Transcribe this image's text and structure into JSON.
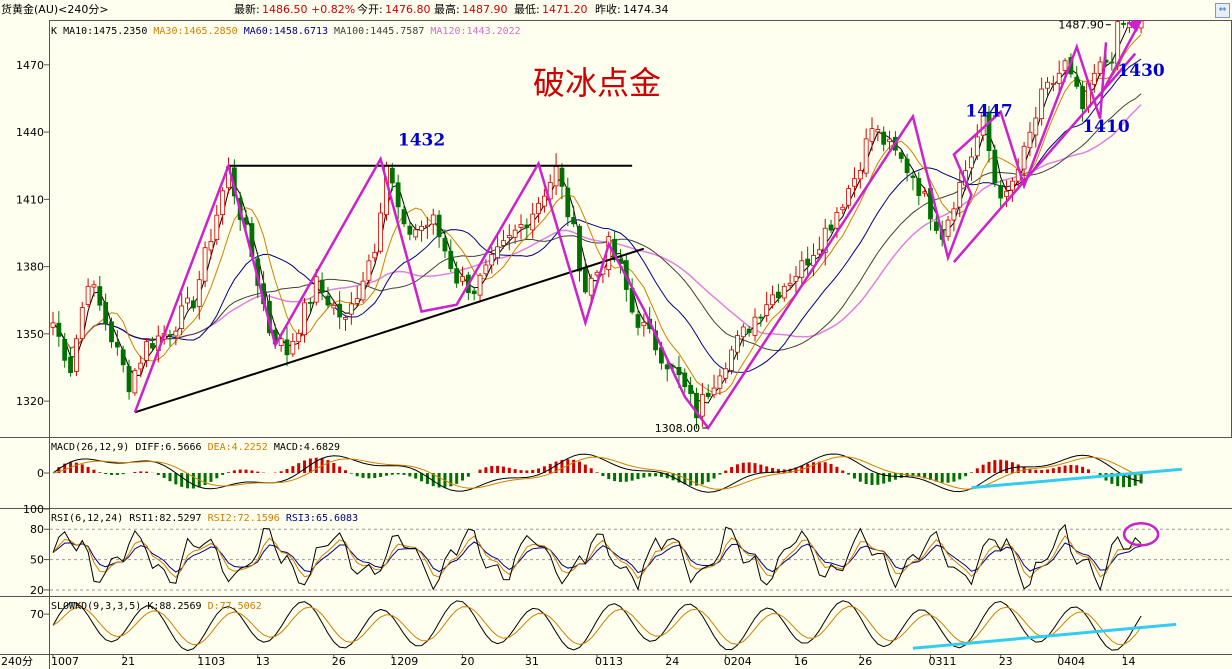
{
  "header": {
    "symbol": "货黄金(AU)<240分>",
    "latest_label": "最新:",
    "latest_value": "1486.50",
    "change_pct": "+0.82%",
    "open_label": "今开:",
    "open_value": "1476.80",
    "high_label": "最高:",
    "high_value": "1487.90",
    "low_label": "最低:",
    "low_value": "1471.20",
    "prev_close_label": "昨收:",
    "prev_close_value": "1474.34"
  },
  "colors": {
    "background": "#fffff0",
    "up_candle": "#d00000",
    "down_candle": "#007000",
    "ma10": "#000000",
    "ma30": "#d08000",
    "ma60": "#000080",
    "ma100": "#404040",
    "ma120": "#e080e0",
    "annotation_magenta": "#cc22cc",
    "annotation_blue": "#0000cc",
    "annotation_red": "#cc0000",
    "trendline_cyan": "#33ccee"
  },
  "chart_data": {
    "type": "candlestick",
    "timeframe": "240分",
    "title": "破冰点金",
    "ma_legend": {
      "prefix": "K",
      "items": [
        {
          "name": "MA10",
          "text": "MA10:1475.2350",
          "value": 1475.235
        },
        {
          "name": "MA30",
          "text": "MA30:1465.2850",
          "value": 1465.285
        },
        {
          "name": "MA60",
          "text": "MA60:1458.6713",
          "value": 1458.6713
        },
        {
          "name": "MA100",
          "text": "MA100:1445.7587",
          "value": 1445.7587
        },
        {
          "name": "MA120",
          "text": "MA120:1443.2022",
          "value": 1443.2022
        }
      ]
    },
    "price_axis": {
      "ylim": [
        1304,
        1490
      ],
      "ticks": [
        "1470",
        "1440",
        "1410",
        "1380",
        "1350",
        "1320"
      ]
    },
    "x_axis": {
      "corner_label": "240分",
      "ticks": [
        "1007",
        "21",
        "1103",
        "13",
        "26",
        "1209",
        "20",
        "31",
        "0113",
        "24",
        "0204",
        "16",
        "26",
        "0311",
        "23",
        "0404",
        "14"
      ],
      "tick_slots": [
        0,
        12,
        25,
        35,
        48,
        58,
        70,
        81,
        93,
        105,
        115,
        127,
        138,
        150,
        162,
        172,
        183
      ]
    },
    "price_path": [
      [
        0,
        1355
      ],
      [
        3,
        1335
      ],
      [
        6,
        1375
      ],
      [
        8,
        1362
      ],
      [
        13,
        1328
      ],
      [
        16,
        1345
      ],
      [
        20,
        1352
      ],
      [
        24,
        1365
      ],
      [
        30,
        1423
      ],
      [
        34,
        1385
      ],
      [
        37,
        1352
      ],
      [
        40,
        1342
      ],
      [
        43,
        1360
      ],
      [
        45,
        1372
      ],
      [
        50,
        1355
      ],
      [
        55,
        1390
      ],
      [
        57,
        1426
      ],
      [
        60,
        1395
      ],
      [
        65,
        1400
      ],
      [
        69,
        1375
      ],
      [
        72,
        1370
      ],
      [
        76,
        1385
      ],
      [
        82,
        1405
      ],
      [
        86,
        1423
      ],
      [
        89,
        1395
      ],
      [
        91,
        1370
      ],
      [
        93,
        1378
      ],
      [
        95,
        1389
      ],
      [
        97,
        1378
      ],
      [
        99,
        1360
      ],
      [
        103,
        1345
      ],
      [
        107,
        1330
      ],
      [
        110,
        1315
      ],
      [
        114,
        1335
      ],
      [
        118,
        1350
      ],
      [
        122,
        1365
      ],
      [
        128,
        1380
      ],
      [
        133,
        1400
      ],
      [
        137,
        1420
      ],
      [
        140,
        1442
      ],
      [
        144,
        1430
      ],
      [
        147,
        1421
      ],
      [
        149,
        1410
      ],
      [
        152,
        1395
      ],
      [
        154,
        1410
      ],
      [
        157,
        1430
      ],
      [
        159,
        1445
      ],
      [
        161,
        1418
      ],
      [
        163,
        1410
      ],
      [
        166,
        1430
      ],
      [
        169,
        1455
      ],
      [
        173,
        1470
      ],
      [
        176,
        1450
      ],
      [
        178,
        1465
      ],
      [
        181,
        1475
      ],
      [
        182,
        1485
      ],
      [
        183,
        1487.5
      ]
    ],
    "key_levels": [
      {
        "label": "1487.90",
        "price": 1487.9,
        "slot": 181
      },
      {
        "label": "1308.00",
        "price": 1308.0,
        "slot": 112
      }
    ],
    "annotations": [
      {
        "text": "1432",
        "price": 1434,
        "slot": 63
      },
      {
        "text": "1447",
        "price": 1447,
        "slot": 160
      },
      {
        "text": "1430",
        "price": 1465,
        "slot": 186
      },
      {
        "text": "1410",
        "price": 1440,
        "slot": 180
      }
    ],
    "resistance_line": {
      "price": 1425,
      "from_slot": 30,
      "to_slot": 99
    },
    "support_line": {
      "from": [
        14,
        1315
      ],
      "to": [
        101,
        1388
      ]
    },
    "zigzag": [
      [
        14,
        1315
      ],
      [
        30,
        1425
      ],
      [
        38,
        1345
      ],
      [
        56,
        1428
      ],
      [
        63,
        1360
      ],
      [
        69,
        1363
      ],
      [
        83,
        1426
      ],
      [
        91,
        1355
      ],
      [
        95,
        1390
      ],
      [
        101,
        1361
      ],
      [
        108,
        1322
      ],
      [
        112,
        1308
      ],
      [
        147,
        1447
      ],
      [
        153,
        1384
      ],
      [
        157,
        1412
      ],
      [
        154,
        1430
      ],
      [
        162,
        1449
      ],
      [
        166,
        1416
      ],
      [
        175,
        1478
      ],
      [
        179,
        1446
      ],
      [
        180,
        1480
      ]
    ],
    "up_channel": {
      "from": [
        154,
        1382
      ],
      "to": [
        185,
        1475
      ]
    },
    "breakout_arrow": {
      "from": [
        179,
        1456
      ],
      "to": [
        186,
        1490
      ]
    },
    "macd": {
      "label_text": "MACD(26,12,9)",
      "diff_text": "DIFF:6.5666",
      "diff": 6.5666,
      "dea_text": "DEA:4.2252",
      "dea": 4.2252,
      "macd_text": "MACD:4.6829",
      "macd": 4.6829,
      "zero_label": "0",
      "ylim": [
        -12,
        12
      ]
    },
    "rsi": {
      "label_text": "RSI(6,12,24)",
      "rsi1_text": "RSI1:82.5297",
      "rsi1": 82.5297,
      "rsi2_text": "RSI2:72.1596",
      "rsi2": 72.1596,
      "rsi3_text": "RSI3:65.6083",
      "rsi3": 65.6083,
      "ylim": [
        15,
        100
      ],
      "ticks": [
        "100",
        "80",
        "50",
        "20"
      ]
    },
    "slowkd": {
      "label_text": "SLOWKD(9,3,3,5)",
      "k_text": "K:88.2569",
      "k": 88.2569,
      "d_text": "D:77.5062",
      "d": 77.5062,
      "ylim": [
        0,
        100
      ],
      "ticks": [
        "70"
      ]
    }
  }
}
